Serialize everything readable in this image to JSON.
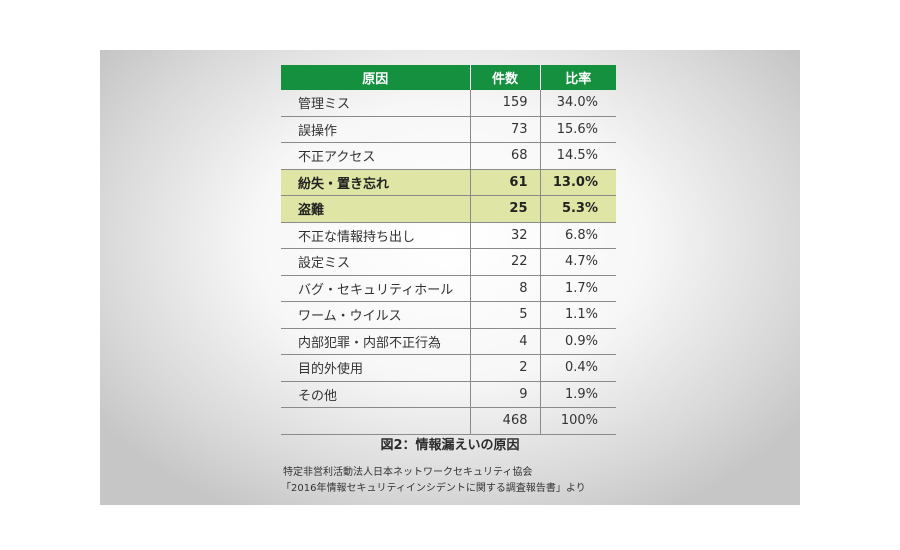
{
  "chart_data": {
    "type": "table",
    "columns": [
      "原因",
      "件数",
      "比率"
    ],
    "rows": [
      {
        "cause": "管理ミス",
        "count": "159",
        "ratio": "34.0%",
        "highlight": false
      },
      {
        "cause": "誤操作",
        "count": "73",
        "ratio": "15.6%",
        "highlight": false
      },
      {
        "cause": "不正アクセス",
        "count": "68",
        "ratio": "14.5%",
        "highlight": false
      },
      {
        "cause": "紛失・置き忘れ",
        "count": "61",
        "ratio": "13.0%",
        "highlight": true
      },
      {
        "cause": "盗難",
        "count": "25",
        "ratio": "5.3%",
        "highlight": true
      },
      {
        "cause": "不正な情報持ち出し",
        "count": "32",
        "ratio": "6.8%",
        "highlight": false
      },
      {
        "cause": "設定ミス",
        "count": "22",
        "ratio": "4.7%",
        "highlight": false
      },
      {
        "cause": "バグ・セキュリティホール",
        "count": "8",
        "ratio": "1.7%",
        "highlight": false
      },
      {
        "cause": "ワーム・ウイルス",
        "count": "5",
        "ratio": "1.1%",
        "highlight": false
      },
      {
        "cause": "内部犯罪・内部不正行為",
        "count": "4",
        "ratio": "0.9%",
        "highlight": false
      },
      {
        "cause": "目的外使用",
        "count": "2",
        "ratio": "0.4%",
        "highlight": false
      },
      {
        "cause": "その他",
        "count": "9",
        "ratio": "1.9%",
        "highlight": false
      },
      {
        "cause": "",
        "count": "468",
        "ratio": "100%",
        "highlight": false
      }
    ],
    "title": "図2：情報漏えいの原因"
  },
  "source_lines": [
    "特定非営利活動法人日本ネットワークセキュリティ協会",
    "「2016年情報セキュリティインシデントに関する調査報告書」より"
  ],
  "colors": {
    "header_bg": "#14903f",
    "highlight_bg": "#dfe6a5"
  }
}
